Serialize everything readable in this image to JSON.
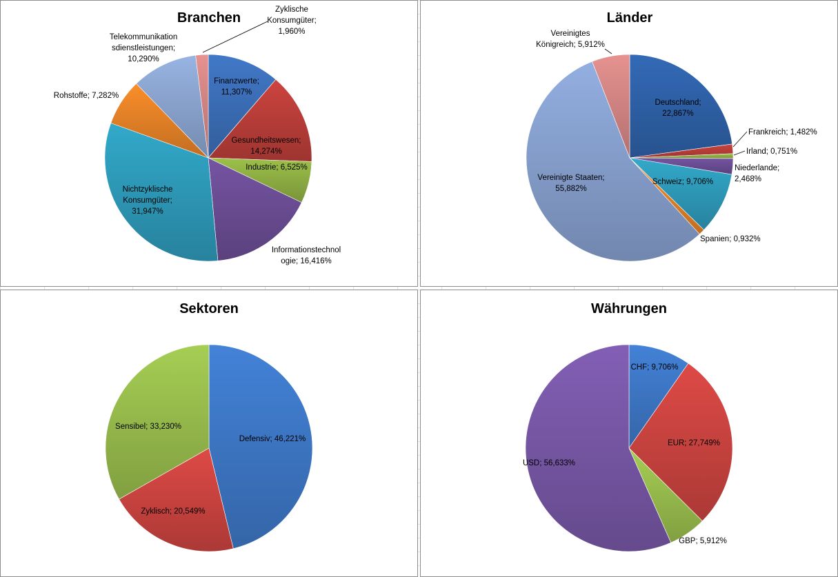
{
  "chart_data": [
    {
      "type": "pie",
      "title": "Branchen",
      "slices": [
        {
          "label": "Finanzwerte",
          "value": 11.307,
          "text": "Finanzwerte;|11,307%",
          "color": "#3d72bd"
        },
        {
          "label": "Gesundheitswesen",
          "value": 14.274,
          "text": "Gesundheitswesen;|14,274%",
          "color": "#c0403b"
        },
        {
          "label": "Industrie",
          "value": 6.525,
          "text": "Industrie; 6,525%",
          "color": "#93b546"
        },
        {
          "label": "Informationstechnologie",
          "value": 16.416,
          "text": "Informationstechnol|ogie; 16,416%",
          "color": "#6e4f99"
        },
        {
          "label": "Nichtzyklische Konsumgüter",
          "value": 31.947,
          "text": "Nichtzyklische|Konsumgüter;|31,947%",
          "color": "#2f9fbf"
        },
        {
          "label": "Rohstoffe",
          "value": 7.282,
          "text": "Rohstoffe; 7,282%",
          "color": "#ec8628"
        },
        {
          "label": "Telekommunikationsdienstleistungen",
          "value": 10.29,
          "text": "Telekommunikation|sdienstleistungen;|10,290%",
          "color": "#8faad6"
        },
        {
          "label": "Zyklische Konsumgüter",
          "value": 1.96,
          "text": "Zyklische|Konsumgüter;|1,960%",
          "color": "#d98a88"
        }
      ]
    },
    {
      "type": "pie",
      "title": "Länder",
      "slices": [
        {
          "label": "Deutschland",
          "value": 22.867,
          "text": "Deutschland;|22,867%",
          "color": "#3064ad"
        },
        {
          "label": "Frankreich",
          "value": 1.482,
          "text": "Frankreich; 1,482%",
          "color": "#c0403b"
        },
        {
          "label": "Irland",
          "value": 0.751,
          "text": "Irland; 0,751%",
          "color": "#93b546"
        },
        {
          "label": "Niederlande",
          "value": 2.468,
          "text": "Niederlande;|2,468%",
          "color": "#6e4f99"
        },
        {
          "label": "Schweiz",
          "value": 9.706,
          "text": "Schweiz; 9,706%",
          "color": "#2f9fbf"
        },
        {
          "label": "Spanien",
          "value": 0.932,
          "text": "Spanien; 0,932%",
          "color": "#ec8628"
        },
        {
          "label": "Vereinigte Staaten",
          "value": 55.882,
          "text": "Vereinigte Staaten;|55,882%",
          "color": "#8ba5d4"
        },
        {
          "label": "Vereinigtes Königreich",
          "value": 5.912,
          "text": "Vereinigtes|Königreich; 5,912%",
          "color": "#d98a88"
        }
      ]
    },
    {
      "type": "pie",
      "title": "Sektoren",
      "slices": [
        {
          "label": "Defensiv",
          "value": 46.221,
          "text": "Defensiv; 46,221%",
          "color": "#3f7bcc"
        },
        {
          "label": "Zyklisch",
          "value": 20.549,
          "text": "Zyklisch; 20,549%",
          "color": "#d14642"
        },
        {
          "label": "Sensibel",
          "value": 33.23,
          "text": "Sensibel; 33,230%",
          "color": "#9dc24f"
        }
      ]
    },
    {
      "type": "pie",
      "title": "Währungen",
      "slices": [
        {
          "label": "CHF",
          "value": 9.706,
          "text": "CHF; 9,706%",
          "color": "#3f7bcc"
        },
        {
          "label": "EUR",
          "value": 27.749,
          "text": "EUR; 27,749%",
          "color": "#d14642"
        },
        {
          "label": "GBP",
          "value": 5.912,
          "text": "GBP; 5,912%",
          "color": "#9dc24f"
        },
        {
          "label": "USD",
          "value": 56.633,
          "text": "USD; 56,633%",
          "color": "#7b5aab"
        }
      ]
    }
  ]
}
